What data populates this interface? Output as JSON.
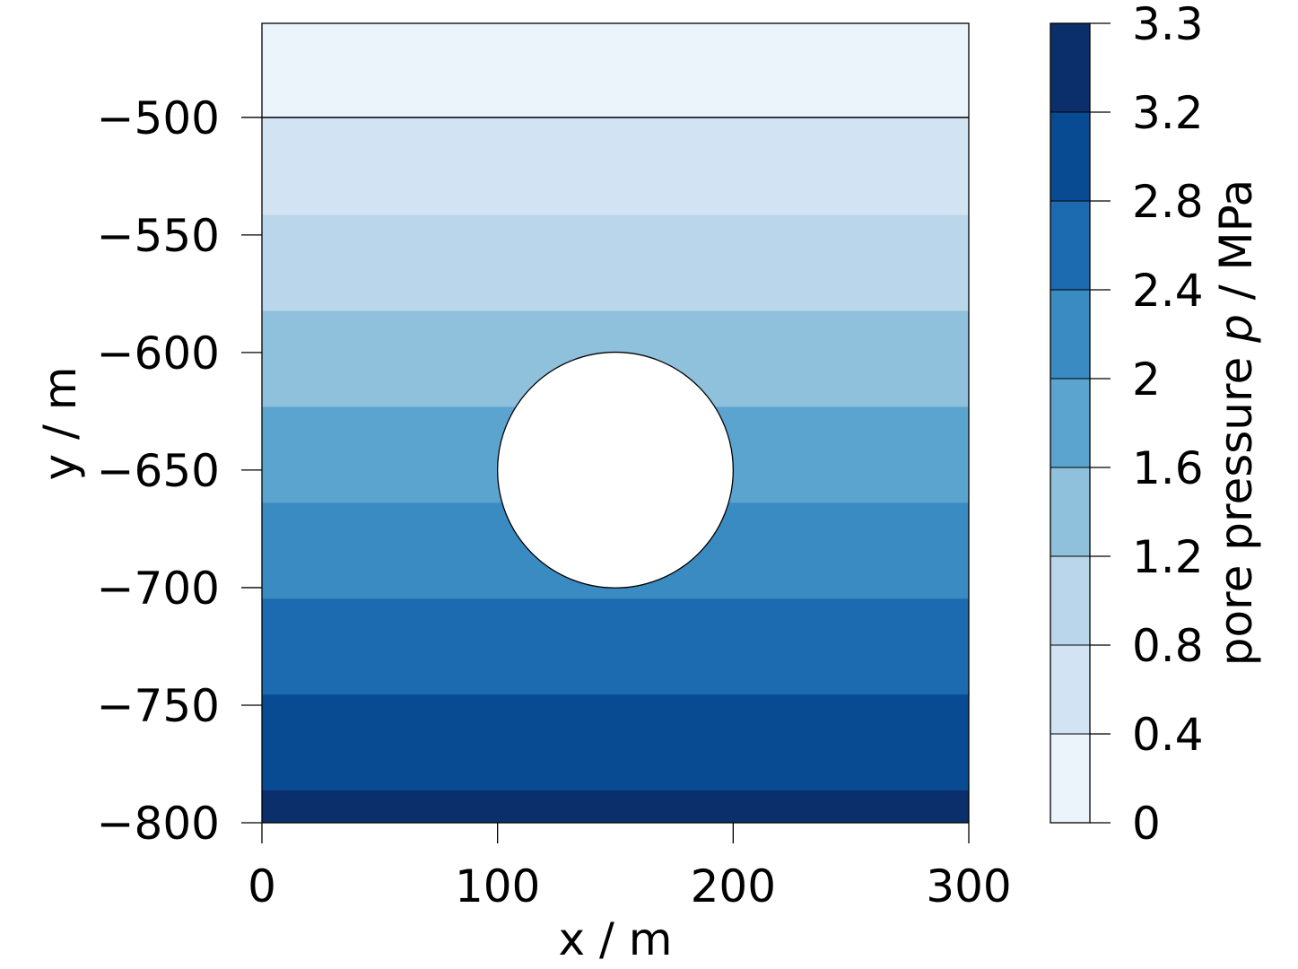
{
  "chart_data": {
    "type": "heatmap",
    "subtype": "filled-contour",
    "xlabel": "x / m",
    "ylabel": "y / m",
    "xlim": [
      0,
      300
    ],
    "ylim": [
      -800,
      -460
    ],
    "xticks": [
      "0",
      "100",
      "200",
      "300"
    ],
    "xtick_values": [
      0,
      100,
      200,
      300
    ],
    "yticks": [
      "−500",
      "−550",
      "−600",
      "−650",
      "−700",
      "−750",
      "−800"
    ],
    "ytick_values": [
      -500,
      -550,
      -600,
      -650,
      -700,
      -750,
      -800
    ],
    "bands": [
      {
        "y_top": -460,
        "y_bottom": -500,
        "color": "#ebf3fb"
      },
      {
        "y_top": -500,
        "y_bottom": -541.5,
        "color": "#d2e3f3"
      },
      {
        "y_top": -541.5,
        "y_bottom": -582.3,
        "color": "#bad6eb"
      },
      {
        "y_top": -582.3,
        "y_bottom": -623.1,
        "color": "#8fc1dd"
      },
      {
        "y_top": -623.1,
        "y_bottom": -663.9,
        "color": "#5ca4d0"
      },
      {
        "y_top": -663.9,
        "y_bottom": -704.7,
        "color": "#3a8bc2"
      },
      {
        "y_top": -704.7,
        "y_bottom": -745.5,
        "color": "#1c6aaf"
      },
      {
        "y_top": -745.5,
        "y_bottom": -786.2,
        "color": "#084b93"
      },
      {
        "y_top": -786.2,
        "y_bottom": -800,
        "color": "#0a2f6b"
      }
    ],
    "contour_line_y": -500,
    "hole": {
      "cx": 150,
      "cy": -650,
      "r": 50,
      "color": "#ffffff"
    },
    "colorbar": {
      "label_prefix": "pore pressure ",
      "label_var": "p",
      "label_suffix": " / MPa",
      "tick_labels": [
        "0",
        "0.4",
        "0.8",
        "1.2",
        "1.6",
        "2",
        "2.4",
        "2.8",
        "3.2",
        "3.3"
      ],
      "colors": [
        "#ebf3fb",
        "#d2e3f3",
        "#bad6eb",
        "#8fc1dd",
        "#5ca4d0",
        "#3a8bc2",
        "#1c6aaf",
        "#084b93",
        "#0a2f6b"
      ],
      "range": [
        0,
        3.3
      ]
    }
  }
}
